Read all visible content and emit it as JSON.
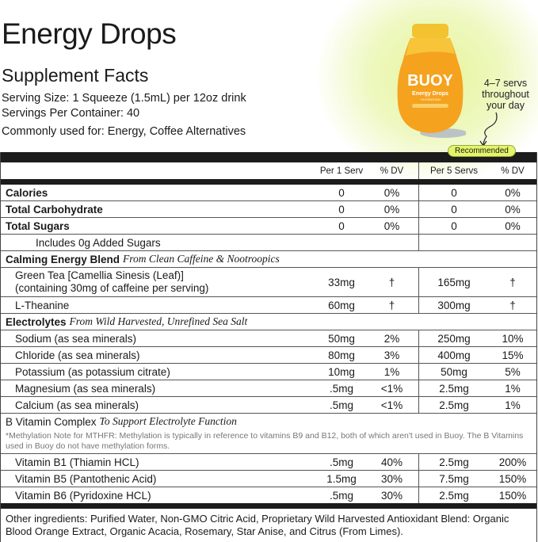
{
  "title": "Energy Drops",
  "subtitle": "Supplement Facts",
  "serving_size": "Serving Size: 1 Squeeze (1.5mL) per 12oz drink",
  "servings_per_container": "Servings Per Container: 40",
  "commonly_used": "Commonly used for: Energy, Coffee Alternatives",
  "product": {
    "brand": "BUOY",
    "name": "Energy Drops",
    "sub": "+HYDRATION",
    "accent": "#f5a623"
  },
  "annotation": "4–7 servs throughout your day",
  "recommended": "Recommended",
  "headers": {
    "per1": "Per 1 Serv",
    "dv1": "% DV",
    "per5": "Per 5 Servs",
    "dv5": "% DV"
  },
  "rows": [
    {
      "label": "Calories",
      "p1": "0",
      "d1": "0%",
      "p5": "0",
      "d5": "0%"
    },
    {
      "label": "Total Carbohydrate",
      "p1": "0",
      "d1": "0%",
      "p5": "0",
      "d5": "0%"
    },
    {
      "label": "Total Sugars",
      "p1": "0",
      "d1": "0%",
      "p5": "0",
      "d5": "0%"
    },
    {
      "label": "Includes 0g Added Sugars"
    }
  ],
  "calming": {
    "label": "Calming Energy Blend",
    "desc": "From Clean Caffeine & Nootroopics",
    "items": [
      {
        "label": "Green Tea [Camellia Sinesis (Leaf)]",
        "label2": "(containing 30mg of caffeine per serving)",
        "p1": "33mg",
        "d1": "†",
        "p5": "165mg",
        "d5": "†"
      },
      {
        "label": "L-Theanine",
        "p1": "60mg",
        "d1": "†",
        "p5": "300mg",
        "d5": "†"
      }
    ]
  },
  "electrolytes": {
    "label": "Electrolytes",
    "desc": "From Wild Harvested, Unrefined Sea Salt",
    "items": [
      {
        "label": "Sodium (as sea minerals)",
        "p1": "50mg",
        "d1": "2%",
        "p5": "250mg",
        "d5": "10%"
      },
      {
        "label": "Chloride (as sea minerals)",
        "p1": "80mg",
        "d1": "3%",
        "p5": "400mg",
        "d5": "15%"
      },
      {
        "label": "Potassium (as potassium citrate)",
        "p1": "10mg",
        "d1": "1%",
        "p5": "50mg",
        "d5": "5%"
      },
      {
        "label": "Magnesium (as sea minerals)",
        "p1": ".5mg",
        "d1": "<1%",
        "p5": "2.5mg",
        "d5": "1%"
      },
      {
        "label": "Calcium (as sea minerals)",
        "p1": ".5mg",
        "d1": "<1%",
        "p5": "2.5mg",
        "d5": "1%"
      }
    ]
  },
  "bvitamin": {
    "label": "B Vitamin Complex",
    "desc": "To Support Electrolyte Function",
    "note": "*Methylation Note for MTHFR: Methylation is typically in reference to vitamins B9 and B12, both of which aren't used in Buoy. The B Vitamins used in Buoy do not have methylation forms.",
    "items": [
      {
        "label": "Vitamin B1 (Thiamin HCL)",
        "p1": ".5mg",
        "d1": "40%",
        "p5": "2.5mg",
        "d5": "200%"
      },
      {
        "label": "Vitamin B5 (Pantothenic Acid)",
        "p1": "1.5mg",
        "d1": "30%",
        "p5": "7.5mg",
        "d5": "150%"
      },
      {
        "label": "Vitamin B6 (Pyridoxine HCL)",
        "p1": ".5mg",
        "d1": "30%",
        "p5": "2.5mg",
        "d5": "150%"
      }
    ]
  },
  "other_ingredients": "Other ingredients: Purified Water, Non-GMO Citric Acid, Proprietary Wild Harvested Antioxidant Blend: Organic Blood Orange Extract, Organic Acacia, Rosemary, Star Anise, and Citrus (From Limes)."
}
